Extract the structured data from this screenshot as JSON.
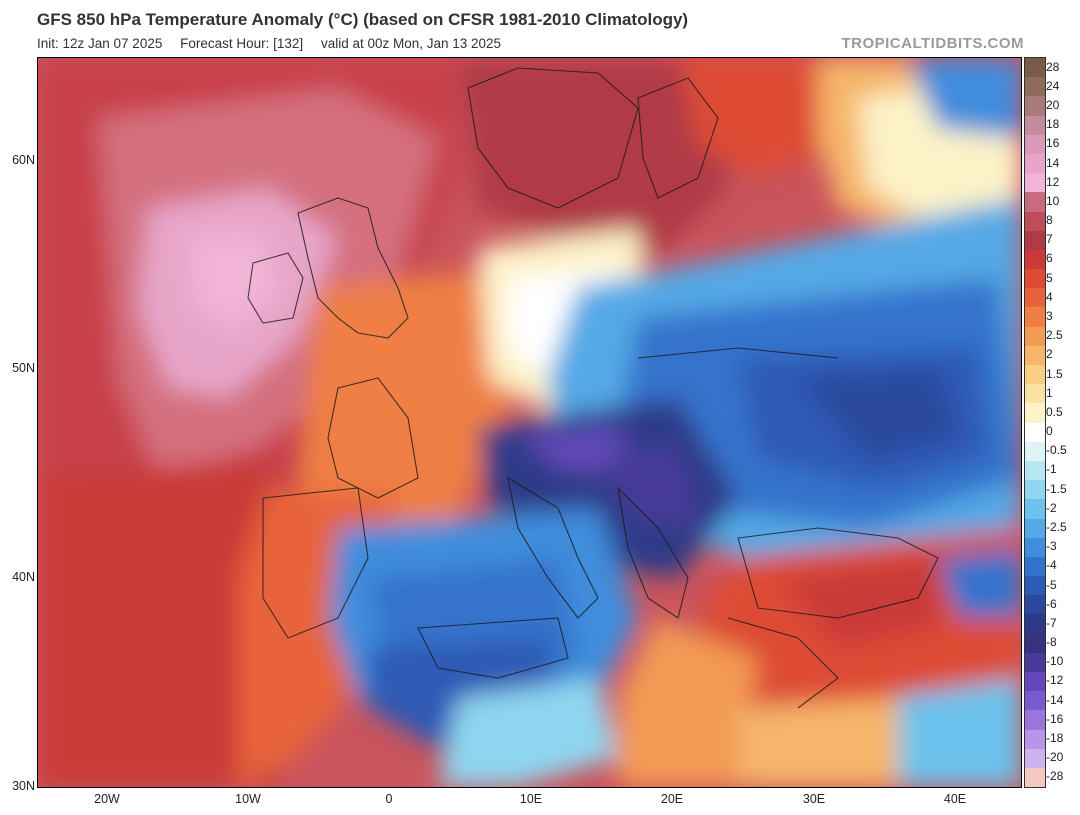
{
  "header": {
    "title": "GFS 850 hPa Temperature Anomaly (°C) (based on CFSR 1981-2010 Climatology)",
    "init": "Init: 12z Jan 07 2025",
    "forecast_hour": "Forecast Hour: [132]",
    "valid": "valid at 00z Mon, Jan 13 2025",
    "brand": "TROPICALTIDBITS.COM"
  },
  "axes": {
    "lat_labels": [
      "60N",
      "50N",
      "40N",
      "30N"
    ],
    "lon_labels": [
      "20W",
      "10W",
      "0",
      "10E",
      "20E",
      "30E",
      "40E"
    ]
  },
  "colorbar": {
    "labels": [
      "28",
      "24",
      "20",
      "18",
      "16",
      "14",
      "12",
      "10",
      "8",
      "7",
      "6",
      "5",
      "4",
      "3",
      "2.5",
      "2",
      "1.5",
      "1",
      "0.5",
      "0",
      "-0.5",
      "-1",
      "-1.5",
      "-2",
      "-2.5",
      "-3",
      "-4",
      "-5",
      "-6",
      "-7",
      "-8",
      "-10",
      "-12",
      "-14",
      "-16",
      "-18",
      "-20",
      "-28"
    ],
    "colors": [
      "#7a5a4a",
      "#8f6b5e",
      "#a87b7b",
      "#c38c9a",
      "#d89ab6",
      "#e7a6c9",
      "#f2b4d6",
      "#c96b7e",
      "#bd4d5b",
      "#b03a46",
      "#c93a38",
      "#dd4b34",
      "#e8633a",
      "#ef7f45",
      "#f39a55",
      "#f6b56b",
      "#f8cd84",
      "#fae3a0",
      "#fdf2c8",
      "#ffffff",
      "#dff3f7",
      "#b6e6f2",
      "#8fd6f0",
      "#6cc2ec",
      "#55a9e6",
      "#3f8ddc",
      "#3473cc",
      "#2d5ab5",
      "#2c489d",
      "#2e3a88",
      "#35337e",
      "#4a3b9a",
      "#6248b8",
      "#7b59cf",
      "#9b75dd",
      "#b796e7",
      "#cdb2ee",
      "#f3c9c0"
    ]
  }
}
